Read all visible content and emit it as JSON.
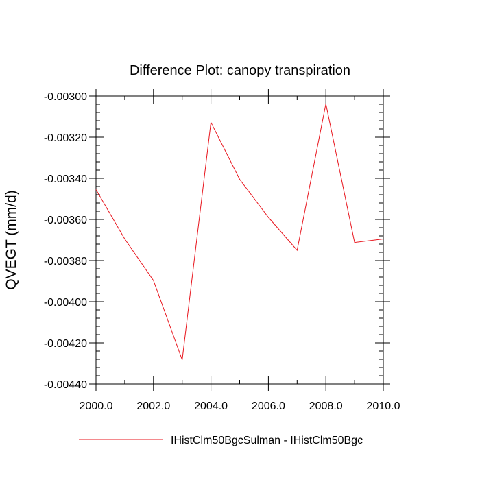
{
  "chart_data": {
    "type": "line",
    "title": "Difference Plot: canopy transpiration",
    "xlabel": "",
    "ylabel": "QVEGT  (mm/d)",
    "xlim": [
      2000,
      2010
    ],
    "ylim": [
      -0.0044,
      -0.003
    ],
    "x_ticks": [
      2000,
      2002,
      2004,
      2006,
      2008,
      2010
    ],
    "x_tick_labels": [
      "2000.0",
      "2002.0",
      "2004.0",
      "2006.0",
      "2008.0",
      "2010.0"
    ],
    "y_ticks": [
      -0.003,
      -0.0032,
      -0.0034,
      -0.0036,
      -0.0038,
      -0.004,
      -0.0042,
      -0.0044
    ],
    "y_tick_labels": [
      "-0.00300",
      "-0.00320",
      "-0.00340",
      "-0.00360",
      "-0.00380",
      "-0.00400",
      "-0.00420",
      "-0.00440"
    ],
    "grid": false,
    "legend_position": "bottom",
    "series": [
      {
        "name": "IHistClm50BgcSulman - IHistClm50Bgc",
        "color": "#e8141c",
        "x": [
          2000,
          2001,
          2002,
          2003,
          2004,
          2005,
          2006,
          2007,
          2008,
          2009,
          2010
        ],
        "y": [
          -0.003455,
          -0.003695,
          -0.003897,
          -0.004283,
          -0.003128,
          -0.003405,
          -0.00359,
          -0.00375,
          -0.003038,
          -0.003712,
          -0.003695
        ]
      }
    ]
  }
}
